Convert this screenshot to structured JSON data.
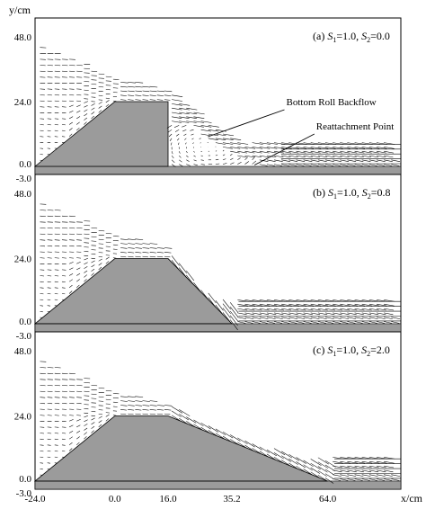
{
  "chart_data": {
    "type": "vector-field",
    "y_axis_label": "y/cm",
    "x_axis_label": "x/cm",
    "x_ticks": [
      {
        "value": -24.0,
        "label": "-24.0"
      },
      {
        "value": 0.0,
        "label": "0.0"
      },
      {
        "value": 16.0,
        "label": "16.0"
      },
      {
        "value": 35.2,
        "label": "35.2"
      },
      {
        "value": 64.0,
        "label": "64.0"
      }
    ],
    "y_ticks": [
      {
        "value": 48.0,
        "label": "48.0"
      },
      {
        "value": 24.0,
        "label": "24.0"
      },
      {
        "value": 0.0,
        "label": "0.0"
      },
      {
        "value": -3.0,
        "label": "-3.0"
      }
    ],
    "xlim": [
      -24,
      86
    ],
    "ylim": [
      -3,
      55
    ],
    "panels": [
      {
        "title_parts": [
          "(a) ",
          "S",
          "1",
          "=1.0, ",
          "S",
          "2",
          "=0.0"
        ],
        "s1": 1.0,
        "s2": 0.0,
        "obstacle": [
          [
            -24,
            0
          ],
          [
            0,
            24
          ],
          [
            16,
            24
          ],
          [
            16,
            0
          ]
        ],
        "annotations": [
          {
            "text": "Bottom Roll Backflow",
            "from_x": 51,
            "from_y": 21,
            "to_x": 28,
            "to_y": 11
          },
          {
            "text": "Reattachment Point",
            "from_x": 60,
            "from_y": 12,
            "to_x": 42,
            "to_y": 0.5
          }
        ]
      },
      {
        "title_parts": [
          "(b) ",
          "S",
          "1",
          "=1.0, ",
          "S",
          "2",
          "=0.8"
        ],
        "s1": 1.0,
        "s2": 0.8,
        "obstacle": [
          [
            -24,
            0
          ],
          [
            0,
            24
          ],
          [
            16,
            24
          ],
          [
            35.2,
            0
          ]
        ],
        "annotations": []
      },
      {
        "title_parts": [
          "(c) ",
          "S",
          "1",
          "=1.0, ",
          "S",
          "2",
          "=2.0"
        ],
        "s1": 1.0,
        "s2": 2.0,
        "obstacle": [
          [
            -24,
            0
          ],
          [
            0,
            24
          ],
          [
            16,
            24
          ],
          [
            64,
            0
          ]
        ],
        "annotations": []
      }
    ]
  }
}
